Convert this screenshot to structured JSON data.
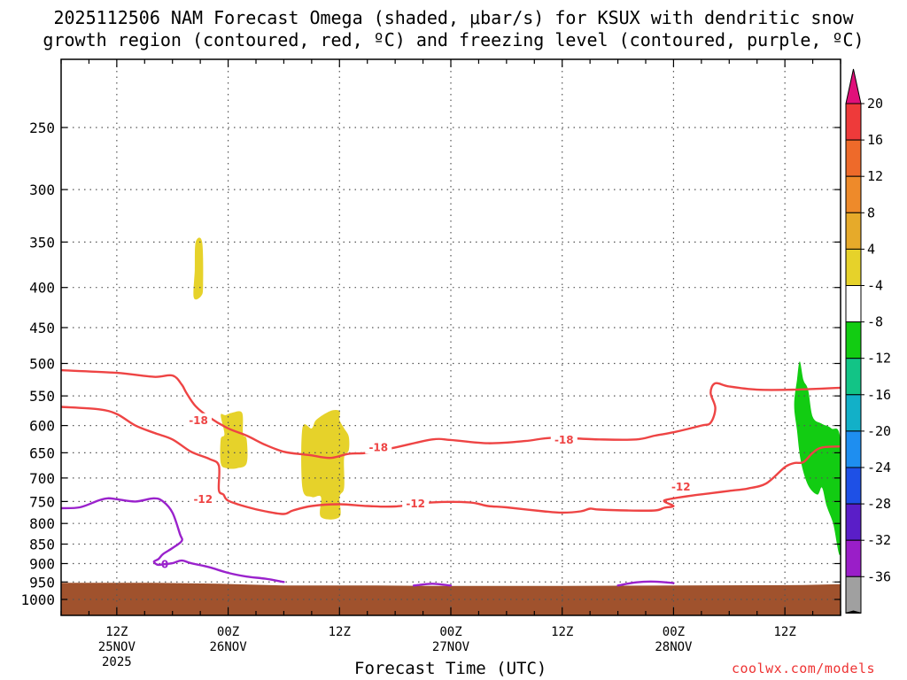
{
  "title": {
    "line1": "2025112506 NAM Forecast Omega (shaded, μbar/s) for KSUX with dendritic snow",
    "line2": "growth region (contoured, red, ºC) and freezing level (contoured, purple, ºC)"
  },
  "credit": "coolwx.com/models",
  "chart_data": {
    "type": "contour",
    "title": "2025112506 NAM Forecast Omega (shaded, μbar/s) for KSUX with dendritic snow growth region (contoured, red, ºC) and freezing level (contoured, purple, ºC)",
    "xlabel": "Forecast Time (UTC)",
    "ylabel": "",
    "y_scale": "log-pressure (hPa), inverted",
    "y_ticks": [
      250,
      300,
      350,
      400,
      450,
      500,
      550,
      600,
      650,
      700,
      750,
      800,
      850,
      900,
      950,
      1000
    ],
    "x_range_hours": [
      0,
      84
    ],
    "x_ticks": [
      {
        "hour": 6,
        "label": "12Z",
        "sub": "25NOV",
        "sub2": "2025"
      },
      {
        "hour": 18,
        "label": "00Z",
        "sub": "26NOV",
        "sub2": ""
      },
      {
        "hour": 30,
        "label": "12Z",
        "sub": "",
        "sub2": ""
      },
      {
        "hour": 42,
        "label": "00Z",
        "sub": "27NOV",
        "sub2": ""
      },
      {
        "hour": 54,
        "label": "12Z",
        "sub": "",
        "sub2": ""
      },
      {
        "hour": 66,
        "label": "00Z",
        "sub": "28NOV",
        "sub2": ""
      },
      {
        "hour": 78,
        "label": "12Z",
        "sub": "",
        "sub2": ""
      }
    ],
    "grid": true,
    "colorbar": {
      "labels": [
        "20",
        "16",
        "12",
        "8",
        "4",
        "-4",
        "-8",
        "-12",
        "-16",
        "-20",
        "-24",
        "-28",
        "-32",
        "-36"
      ],
      "colors": [
        "#ee3a3a",
        "#ee6a2a",
        "#ee8a2a",
        "#e6aa2a",
        "#e6d22a",
        "#ffffff",
        "#12cc12",
        "#12c486",
        "#12b0c8",
        "#1e8ef0",
        "#1e50e6",
        "#5a1ec8",
        "#9a1ec8",
        "#a0a0a0"
      ],
      "top_arrow_color": "#e0107a",
      "bottom_arrow_color": "#000000"
    },
    "dgz_contours": [
      {
        "level": -18,
        "label": "-18",
        "color": "#ee4444",
        "points": [
          [
            0,
            510
          ],
          [
            6,
            514
          ],
          [
            10,
            520
          ],
          [
            12,
            518
          ],
          [
            13,
            532
          ],
          [
            13.5,
            545
          ],
          [
            14.5,
            567
          ],
          [
            16,
            586
          ],
          [
            18,
            605
          ],
          [
            20,
            618
          ],
          [
            22,
            635
          ],
          [
            24,
            648
          ],
          [
            26,
            653
          ],
          [
            27,
            655
          ],
          [
            29,
            660
          ],
          [
            31,
            652
          ],
          [
            33,
            650
          ],
          [
            36,
            640
          ],
          [
            40,
            625
          ],
          [
            42,
            626
          ],
          [
            46,
            632
          ],
          [
            50,
            628
          ],
          [
            53,
            622
          ],
          [
            58,
            625
          ],
          [
            62,
            625
          ],
          [
            64,
            618
          ],
          [
            66,
            612
          ],
          [
            69,
            600
          ],
          [
            70,
            595
          ],
          [
            70.5,
            570
          ],
          [
            70,
            545
          ],
          [
            70.5,
            530
          ],
          [
            72,
            535
          ],
          [
            75,
            540
          ],
          [
            79,
            540
          ],
          [
            84,
            537
          ]
        ]
      },
      {
        "level": -12,
        "label": "-12",
        "color": "#ee4444",
        "points": [
          [
            0,
            568
          ],
          [
            4,
            572
          ],
          [
            6,
            580
          ],
          [
            8,
            600
          ],
          [
            10,
            613
          ],
          [
            12,
            625
          ],
          [
            14,
            648
          ],
          [
            16,
            662
          ],
          [
            17,
            675
          ],
          [
            17,
            725
          ],
          [
            17.5,
            735
          ],
          [
            18,
            748
          ],
          [
            20,
            762
          ],
          [
            22,
            772
          ],
          [
            24,
            778
          ],
          [
            25,
            770
          ],
          [
            27,
            760
          ],
          [
            30,
            756
          ],
          [
            33,
            760
          ],
          [
            36,
            761
          ],
          [
            40,
            752
          ],
          [
            44,
            752
          ],
          [
            46,
            760
          ],
          [
            48,
            763
          ],
          [
            52,
            772
          ],
          [
            54,
            775
          ],
          [
            56,
            772
          ],
          [
            57,
            766
          ],
          [
            58,
            768
          ],
          [
            61,
            770
          ],
          [
            64,
            770
          ],
          [
            65,
            764
          ],
          [
            66,
            760
          ],
          [
            65,
            750
          ],
          [
            65.5,
            745
          ],
          [
            68,
            737
          ],
          [
            70,
            732
          ],
          [
            72,
            727
          ],
          [
            74,
            722
          ],
          [
            76,
            711
          ],
          [
            78,
            678
          ],
          [
            79,
            670
          ],
          [
            80,
            668
          ],
          [
            81,
            650
          ],
          [
            82,
            640
          ],
          [
            84,
            638
          ]
        ]
      }
    ],
    "freezing_level_contours": [
      {
        "level": 0,
        "label": "0",
        "color": "#9a22cc",
        "points": [
          [
            0,
            765
          ],
          [
            2,
            763
          ],
          [
            4,
            748
          ],
          [
            5,
            743
          ],
          [
            6,
            745
          ],
          [
            8,
            750
          ],
          [
            10,
            743
          ],
          [
            11,
            750
          ],
          [
            12,
            775
          ],
          [
            12.8,
            825
          ],
          [
            13,
            842
          ],
          [
            12,
            860
          ],
          [
            11,
            875
          ],
          [
            10.5,
            888
          ],
          [
            10,
            895
          ],
          [
            10.4,
            903
          ],
          [
            11,
            902
          ],
          [
            12,
            899
          ],
          [
            13,
            892
          ],
          [
            14,
            899
          ],
          [
            16,
            910
          ],
          [
            18,
            925
          ],
          [
            20,
            935
          ],
          [
            22,
            941
          ],
          [
            24,
            950
          ]
        ]
      },
      {
        "level": 0,
        "label": "",
        "color": "#9a22cc",
        "points": [
          [
            38,
            960
          ],
          [
            40,
            955
          ],
          [
            42,
            960
          ]
        ]
      },
      {
        "level": 0,
        "label": "",
        "color": "#9a22cc",
        "points": [
          [
            60,
            960
          ],
          [
            62,
            951
          ],
          [
            64,
            949
          ],
          [
            66,
            953
          ]
        ]
      }
    ],
    "omega_regions": [
      {
        "name": "yellow-a",
        "omega_range": [
          4,
          8
        ],
        "color": "#e6d22a",
        "points": [
          [
            14.5,
            350
          ],
          [
            15.2,
            350
          ],
          [
            15.3,
            397
          ],
          [
            15.1,
            410
          ],
          [
            14.3,
            412
          ],
          [
            14.4,
            380
          ]
        ]
      },
      {
        "name": "yellow-b",
        "omega_range": [
          4,
          8
        ],
        "color": "#e6d22a",
        "points": [
          [
            17.2,
            582
          ],
          [
            17.7,
            582
          ],
          [
            18.4,
            578
          ],
          [
            19.5,
            578
          ],
          [
            19.6,
            615
          ],
          [
            20,
            625
          ],
          [
            20,
            670
          ],
          [
            19,
            680
          ],
          [
            17.8,
            680
          ],
          [
            17.2,
            670
          ],
          [
            17.2,
            625
          ],
          [
            17.6,
            615
          ]
        ]
      },
      {
        "name": "yellow-c",
        "omega_range": [
          4,
          8
        ],
        "color": "#e6d22a",
        "points": [
          [
            26,
            605
          ],
          [
            27,
            605
          ],
          [
            27.5,
            590
          ],
          [
            29,
            575
          ],
          [
            30,
            575
          ],
          [
            30,
            590
          ],
          [
            30.5,
            605
          ],
          [
            31,
            620
          ],
          [
            31,
            645
          ],
          [
            30.5,
            660
          ],
          [
            30.5,
            720
          ],
          [
            30,
            740
          ],
          [
            30,
            785
          ],
          [
            28,
            785
          ],
          [
            28,
            740
          ],
          [
            27,
            740
          ],
          [
            26,
            720
          ]
        ]
      },
      {
        "name": "green-east",
        "omega_range": [
          -8,
          -4
        ],
        "color": "#12cc12",
        "points": [
          [
            79,
            565
          ],
          [
            79.3,
            525
          ],
          [
            79.6,
            497
          ],
          [
            80,
            525
          ],
          [
            80.5,
            540
          ],
          [
            81,
            585
          ],
          [
            82,
            597
          ],
          [
            83,
            605
          ],
          [
            84,
            630
          ],
          [
            84,
            870
          ],
          [
            83.2,
            800
          ],
          [
            82.5,
            760
          ],
          [
            82,
            720
          ],
          [
            81.5,
            735
          ],
          [
            80.5,
            715
          ],
          [
            79.7,
            665
          ],
          [
            79.3,
            608
          ]
        ]
      }
    ],
    "terrain": {
      "color": "#a0522d",
      "surface_pressure_hpa": 955
    }
  }
}
